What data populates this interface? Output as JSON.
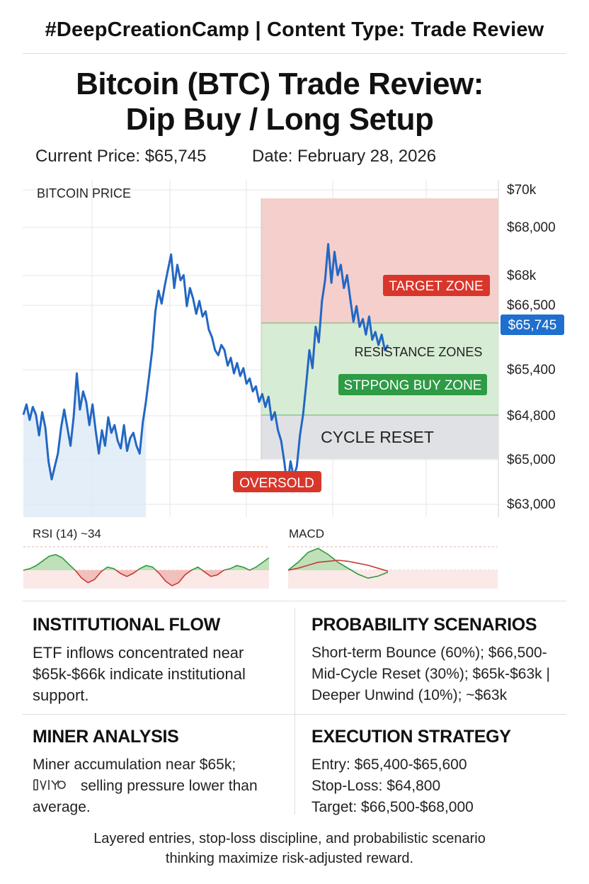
{
  "header": {
    "tag": "#DeepCreationCamp | Content Type: Trade Review"
  },
  "title": {
    "line1": "Bitcoin (BTC) Trade Review:",
    "line2": "Dip Buy / Long Setup"
  },
  "meta": {
    "current_price": "Current Price: $65,745",
    "date": "Date: February 28, 2026"
  },
  "colors": {
    "line": "#2367c4",
    "area": "#dbe8f6",
    "target_zone": "#f4cfcc",
    "buy_zone": "#d6ecd4",
    "reset_zone": "#e0e1e5",
    "red_badge": "#d9362b",
    "green_badge": "#2e9b45",
    "price_badge": "#1f6fcf"
  },
  "chart_data": [
    {
      "type": "line",
      "title": "BITCOIN PRICE",
      "y_tick_labels": [
        "$70k",
        "$68,000",
        "$68k",
        "$66,500",
        "$65,400",
        "$64,800",
        "$65,000",
        "$63,000"
      ],
      "current_price_label": "$65,745",
      "grid": true,
      "series": [
        {
          "values": [
            0.3,
            0.34,
            0.28,
            0.33,
            0.3,
            0.22,
            0.31,
            0.25,
            0.12,
            0.05,
            0.1,
            0.15,
            0.25,
            0.32,
            0.25,
            0.18,
            0.29,
            0.46,
            0.32,
            0.39,
            0.35,
            0.26,
            0.34,
            0.24,
            0.15,
            0.24,
            0.18,
            0.29,
            0.23,
            0.26,
            0.2,
            0.17,
            0.26,
            0.16,
            0.21,
            0.23,
            0.18,
            0.15,
            0.27,
            0.35,
            0.45,
            0.55,
            0.7,
            0.78,
            0.73,
            0.8,
            0.86,
            0.92,
            0.79,
            0.88,
            0.82,
            0.84,
            0.72,
            0.79,
            0.75,
            0.69,
            0.74,
            0.68,
            0.7,
            0.63,
            0.6,
            0.55,
            0.53,
            0.57,
            0.55,
            0.49,
            0.52,
            0.46,
            0.5,
            0.45,
            0.48,
            0.42,
            0.44,
            0.39,
            0.41,
            0.35,
            0.38,
            0.33,
            0.37,
            0.28,
            0.31,
            0.24,
            0.2,
            0.12,
            0.02,
            0.12,
            0.06,
            0.1,
            0.22,
            0.3,
            0.42,
            0.55,
            0.48,
            0.64,
            0.58,
            0.74,
            0.82,
            0.96,
            0.81,
            0.93,
            0.84,
            0.88,
            0.79,
            0.84,
            0.75,
            0.66,
            0.72,
            0.64,
            0.67,
            0.61,
            0.68,
            0.59,
            0.62,
            0.57,
            0.61,
            0.55,
            0.57
          ]
        }
      ],
      "zones": [
        {
          "label": "TARGET ZONE"
        },
        {
          "label": "RESISTANCE ZONES"
        },
        {
          "label": "STPPONG BUY ZONE"
        },
        {
          "label": "CYCLE RESET"
        }
      ],
      "annotations": [
        "OVERSOLD"
      ]
    },
    {
      "type": "area",
      "title": "RSI (14) ~34",
      "grid": true,
      "series": [
        {
          "values": [
            0.0,
            0.1,
            0.3,
            0.6,
            0.9,
            1.0,
            0.8,
            0.4,
            0.0,
            -0.5,
            -0.8,
            -0.6,
            -0.1,
            0.2,
            0.1,
            -0.2,
            -0.4,
            -0.2,
            0.1,
            0.3,
            0.2,
            -0.2,
            -0.7,
            -1.0,
            -0.8,
            -0.3,
            0.0,
            0.2,
            -0.1,
            -0.4,
            -0.3,
            0.0,
            0.1,
            0.3,
            0.2,
            0.0,
            0.2,
            0.5,
            0.8
          ]
        }
      ]
    },
    {
      "type": "area",
      "title": "MACD",
      "grid": true,
      "series": [
        {
          "name": "histogram",
          "values": [
            0.0,
            0.4,
            0.9,
            1.1,
            0.8,
            0.4,
            0.1,
            -0.2,
            -0.4,
            -0.3,
            -0.1
          ]
        },
        {
          "name": "signal",
          "values": [
            0.0,
            0.1,
            0.25,
            0.4,
            0.45,
            0.5,
            0.45,
            0.35,
            0.25,
            0.1,
            -0.05
          ]
        }
      ]
    }
  ],
  "sections": {
    "institutional": {
      "title": "INSTITUTIONAL FLOW",
      "text": "ETF inflows concentrated near $65k-$66k indicate institutional support."
    },
    "probability": {
      "title": "PROBABILITY SCENARIOS",
      "lines": [
        "Short-term Bounce (60%); $66,500-",
        "Mid-Cycle Reset (30%); $65k-$63k |",
        "Deeper Unwind (10%); ~$63k"
      ]
    },
    "miner": {
      "title": "MINER ANALYSIS",
      "line1": "Miner accumulation near $65k;",
      "line2": "selling pressure lower than",
      "line3": "average."
    },
    "execution": {
      "title": "EXECUTION STRATEGY",
      "lines": [
        "Entry: $65,400-$65,600",
        "Stop-Loss: $64,800",
        "Target: $66,500-$68,000"
      ]
    }
  },
  "footer": {
    "line1": "Layered entries, stop-loss discipline, and probabilistic scenario",
    "line2": "thinking maximize risk-adjusted reward."
  }
}
